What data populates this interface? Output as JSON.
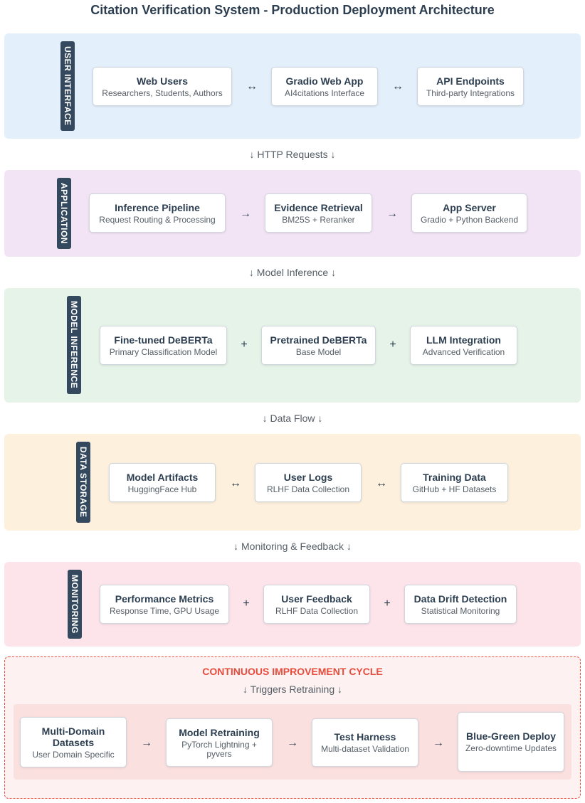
{
  "title": "Citation Verification System - Production Deployment Architecture",
  "sections": {
    "ui": {
      "label": "USER INTERFACE",
      "color": "#e3f0fc",
      "cards": [
        {
          "title": "Web Users",
          "subtitle": "Researchers, Students, Authors"
        },
        {
          "title": "Gradio Web App",
          "subtitle": "AI4citations Interface"
        },
        {
          "title": "API Endpoints",
          "subtitle": "Third-party Integrations"
        }
      ],
      "connectors": [
        "↔",
        "↔"
      ]
    },
    "app": {
      "label": "APPLICATION",
      "color": "#f3e4f5",
      "cards": [
        {
          "title": "Inference Pipeline",
          "subtitle": "Request Routing & Processing"
        },
        {
          "title": "Evidence Retrieval",
          "subtitle": "BM25S + Reranker"
        },
        {
          "title": "App Server",
          "subtitle": "Gradio + Python Backend"
        }
      ],
      "connectors": [
        "→",
        "→"
      ]
    },
    "model": {
      "label": "MODEL INFERENCE",
      "color": "#e6f3e8",
      "cards": [
        {
          "title": "Fine-tuned DeBERTa",
          "subtitle": "Primary Classification Model"
        },
        {
          "title": "Pretrained DeBERTa",
          "subtitle": "Base Model"
        },
        {
          "title": "LLM Integration",
          "subtitle": "Advanced Verification"
        }
      ],
      "connectors": [
        "+",
        "+"
      ]
    },
    "storage": {
      "label": "DATA STORAGE",
      "color": "#fdf0dd",
      "cards": [
        {
          "title": "Model Artifacts",
          "subtitle": "HuggingFace Hub"
        },
        {
          "title": "User Logs",
          "subtitle": "RLHF Data Collection"
        },
        {
          "title": "Training Data",
          "subtitle": "GitHub + HF Datasets"
        }
      ],
      "connectors": [
        "↔",
        "↔"
      ]
    },
    "monitoring": {
      "label": "MONITORING",
      "color": "#fce4ea",
      "cards": [
        {
          "title": "Performance Metrics",
          "subtitle": "Response Time, GPU Usage"
        },
        {
          "title": "User Feedback",
          "subtitle": "RLHF Data Collection"
        },
        {
          "title": "Data Drift Detection",
          "subtitle": "Statistical Monitoring"
        }
      ],
      "connectors": [
        "+",
        "+"
      ]
    }
  },
  "flows": {
    "http": "↓ HTTP Requests ↓",
    "inference": "↓ Model Inference ↓",
    "data": "↓ Data Flow ↓",
    "monitoring": "↓ Monitoring & Feedback ↓"
  },
  "continuous_improvement": {
    "title": "CONTINUOUS IMPROVEMENT CYCLE",
    "trigger": "↓ Triggers Retraining ↓",
    "cards": [
      {
        "title": "Multi-Domain Datasets",
        "subtitle": "User Domain Specific"
      },
      {
        "title": "Model Retraining",
        "subtitle": "PyTorch Lightning + pyvers"
      },
      {
        "title": "Test Harness",
        "subtitle": "Multi-dataset Validation"
      },
      {
        "title": "Blue-Green Deploy",
        "subtitle": "Zero-downtime Updates"
      }
    ],
    "connectors": [
      "→",
      "→",
      "→"
    ]
  }
}
